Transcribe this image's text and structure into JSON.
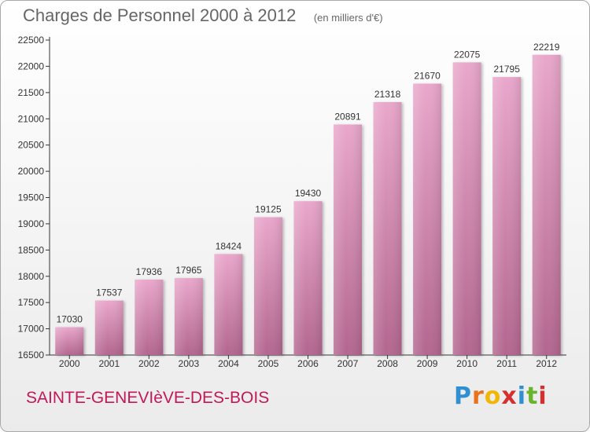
{
  "header": {
    "title": "Charges de Personnel 2000 à 2012",
    "subtitle": "(en milliers d'€)"
  },
  "footer": {
    "commune": "SAINTE-GENEVIèVE-DES-BOIS",
    "brand_letters": [
      "P",
      "r",
      "o",
      "x",
      "i",
      "t",
      "i"
    ],
    "brand_colors": [
      "#2f8fd1",
      "#e8731c",
      "#f2b705",
      "#d62f2f",
      "#2f8fd1",
      "#6ab42d",
      "#d62f2f"
    ]
  },
  "chart_data": {
    "type": "bar",
    "categories": [
      "2000",
      "2001",
      "2002",
      "2003",
      "2004",
      "2005",
      "2006",
      "2007",
      "2008",
      "2009",
      "2010",
      "2011",
      "2012"
    ],
    "values": [
      17030,
      17537,
      17936,
      17965,
      18424,
      19125,
      19430,
      20891,
      21318,
      21670,
      22075,
      21795,
      22219
    ],
    "ylim": [
      16500,
      22500
    ],
    "yticks": [
      16500,
      17000,
      17500,
      18000,
      18500,
      19000,
      19500,
      20000,
      20500,
      21000,
      21500,
      22000,
      22500
    ],
    "grid": false,
    "bar_color": "#d98cb4",
    "legend": "none"
  }
}
